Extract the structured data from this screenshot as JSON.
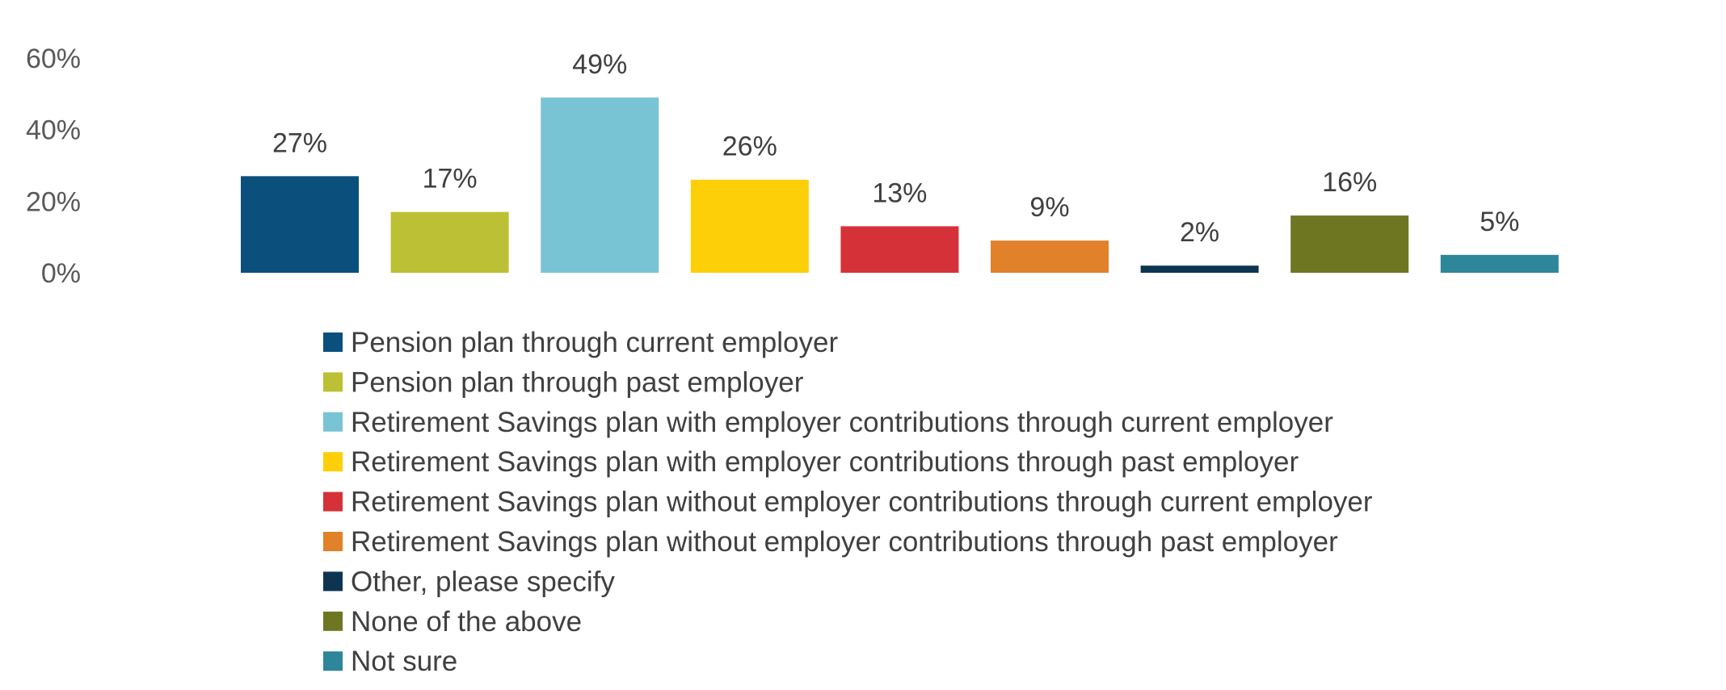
{
  "chart_data": {
    "type": "bar",
    "categories": [
      "Pension plan through current employer",
      "Pension plan through past employer",
      "Retirement Savings plan with employer contributions through current employer",
      "Retirement Savings plan with employer contributions through past employer",
      "Retirement Savings plan without employer contributions through current employer",
      "Retirement Savings plan without employer contributions through past employer",
      "Other, please specify",
      "None of the above",
      "Not sure"
    ],
    "values": [
      27,
      17,
      49,
      26,
      13,
      9,
      2,
      16,
      5
    ],
    "data_labels": [
      "27%",
      "17%",
      "49%",
      "26%",
      "13%",
      "9%",
      "2%",
      "16%",
      "5%"
    ],
    "colors": [
      "#0b4f7d",
      "#bcc034",
      "#79c4d4",
      "#fccf08",
      "#d43238",
      "#e1812a",
      "#0d3551",
      "#6e7622",
      "#2d8699"
    ],
    "ylim": [
      0,
      60
    ],
    "yticks": [
      0,
      20,
      40,
      60
    ],
    "ytick_labels": [
      "0%",
      "20%",
      "40%",
      "60%"
    ],
    "grid": false,
    "legend_position": "bottom",
    "title": "",
    "xlabel": "",
    "ylabel": ""
  }
}
